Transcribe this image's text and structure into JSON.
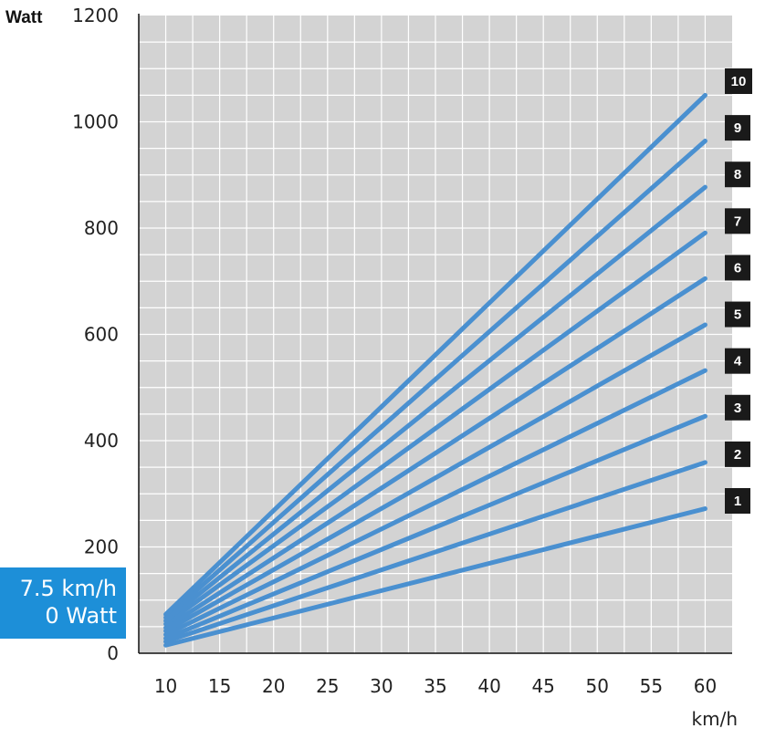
{
  "chart_data": {
    "type": "line",
    "ylabel": "Watt",
    "xlabel": "km/h",
    "xlim": [
      7.5,
      62.5
    ],
    "ylim": [
      0,
      1200
    ],
    "x_ticks": [
      10,
      15,
      20,
      25,
      30,
      35,
      40,
      45,
      50,
      55,
      60
    ],
    "y_ticks": [
      0,
      200,
      400,
      600,
      800,
      1000,
      1200
    ],
    "grid": true,
    "series": [
      {
        "name": "1",
        "x": [
          10,
          60
        ],
        "y": [
          15,
          272
        ]
      },
      {
        "name": "2",
        "x": [
          10,
          60
        ],
        "y": [
          22,
          359
        ]
      },
      {
        "name": "3",
        "x": [
          10,
          60
        ],
        "y": [
          28,
          446
        ]
      },
      {
        "name": "4",
        "x": [
          10,
          60
        ],
        "y": [
          35,
          532
        ]
      },
      {
        "name": "5",
        "x": [
          10,
          60
        ],
        "y": [
          42,
          618
        ]
      },
      {
        "name": "6",
        "x": [
          10,
          60
        ],
        "y": [
          48,
          705
        ]
      },
      {
        "name": "7",
        "x": [
          10,
          60
        ],
        "y": [
          55,
          791
        ]
      },
      {
        "name": "8",
        "x": [
          10,
          60
        ],
        "y": [
          61,
          877
        ]
      },
      {
        "name": "9",
        "x": [
          10,
          60
        ],
        "y": [
          67,
          964
        ]
      },
      {
        "name": "10",
        "x": [
          10,
          60
        ],
        "y": [
          73,
          1050
        ]
      }
    ],
    "line_color": "#4a90d0",
    "background_color": "#d3d3d3",
    "badge_color": "#1a1a1a"
  },
  "readout": {
    "speed": "7.5 km/h",
    "power": "0 Watt",
    "color": "#1d8fd8"
  }
}
